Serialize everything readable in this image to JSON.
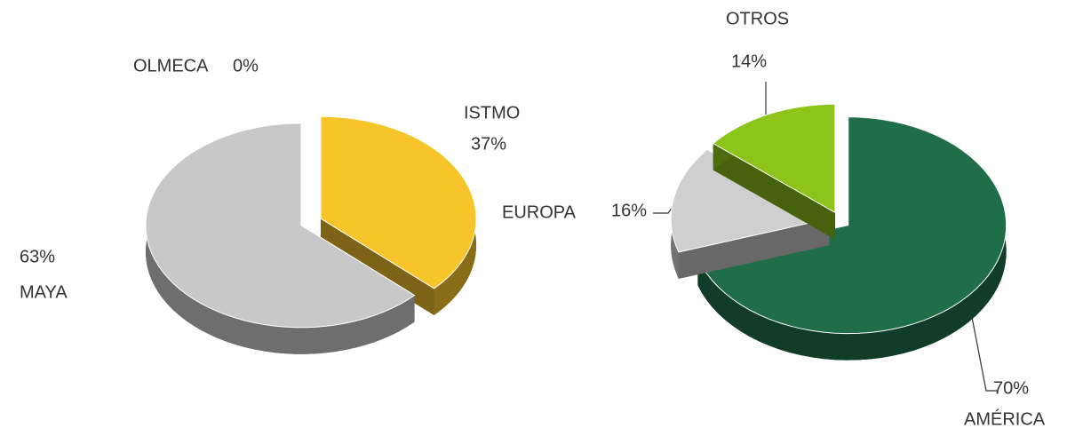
{
  "chart_data": [
    {
      "type": "pie",
      "categories": [
        "OLMECA",
        "ISTMO",
        "MAYA"
      ],
      "values": [
        0,
        37,
        63
      ],
      "value_labels": [
        "0%",
        "37%",
        "63%"
      ],
      "colors": [
        "#b0b0b0",
        "#f7c52a",
        "#c8c8c8"
      ]
    },
    {
      "type": "pie",
      "categories": [
        "AMÉRICA",
        "EUROPA",
        "OTROS"
      ],
      "values": [
        70,
        16,
        14
      ],
      "value_labels": [
        "70%",
        "16%",
        "14%"
      ],
      "colors": [
        "#1f6e48",
        "#cfcfcf",
        "#8cc41a"
      ]
    }
  ]
}
